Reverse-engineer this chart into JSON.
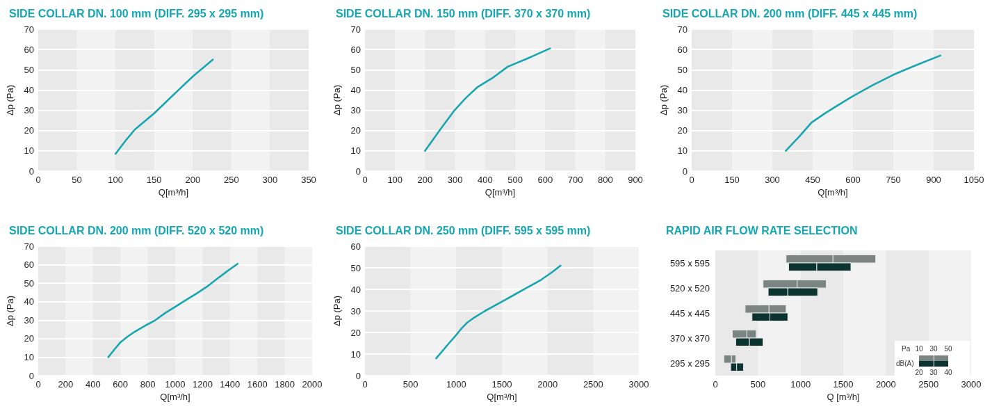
{
  "chart_data": [
    {
      "type": "line",
      "title": "SIDE COLLAR DN. 100 mm (DIFF. 295 x 295 mm)",
      "xlabel": "Q[m³/h]",
      "ylabel": "Δp (Pa)",
      "xlim": [
        0,
        350
      ],
      "xticks": [
        0,
        50,
        100,
        150,
        200,
        250,
        300,
        350
      ],
      "ylim": [
        0,
        70
      ],
      "yticks": [
        0,
        10,
        20,
        30,
        40,
        50,
        60,
        70
      ],
      "grid": "y",
      "series": [
        {
          "color": "#17a6b0",
          "x": [
            100,
            113,
            125,
            150,
            176,
            201,
            226
          ],
          "values": [
            8.5,
            15,
            20.5,
            28.5,
            38,
            47,
            55
          ]
        }
      ]
    },
    {
      "type": "line",
      "title": "SIDE COLLAR DN. 150 mm (DIFF. 370 x 370 mm)",
      "xlabel": "Q[m³/h]",
      "ylabel": "Δp (Pa)",
      "xlim": [
        0,
        900
      ],
      "xticks": [
        0,
        100,
        200,
        300,
        400,
        500,
        600,
        700,
        800,
        900
      ],
      "ylim": [
        0,
        70
      ],
      "yticks": [
        0,
        10,
        20,
        30,
        40,
        50,
        60,
        70
      ],
      "grid": "y",
      "series": [
        {
          "color": "#17a6b0",
          "x": [
            200,
            253,
            298,
            335,
            375,
            425,
            475,
            540,
            616
          ],
          "values": [
            10,
            21,
            30,
            36,
            41.5,
            46,
            51.5,
            55.5,
            60.5
          ]
        }
      ]
    },
    {
      "type": "line",
      "title": "SIDE COLLAR DN. 200 mm (DIFF. 445 x 445 mm)",
      "xlabel": "Q[m³/h]",
      "ylabel": "Δp (Pa)",
      "xlim": [
        0,
        1050
      ],
      "xticks": [
        0,
        150,
        300,
        450,
        600,
        750,
        900,
        1050
      ],
      "ylim": [
        0,
        70
      ],
      "yticks": [
        0,
        10,
        20,
        30,
        40,
        50,
        60,
        70
      ],
      "grid": "y",
      "series": [
        {
          "color": "#17a6b0",
          "x": [
            350,
            400,
            446,
            496,
            550,
            600,
            675,
            750,
            830,
            925
          ],
          "values": [
            10,
            17,
            24,
            28.5,
            33,
            37,
            42.5,
            47.5,
            52,
            57
          ]
        }
      ]
    },
    {
      "type": "line",
      "title": "SIDE COLLAR DN. 200 mm (DIFF. 520 x 520 mm)",
      "xlabel": "Q[m³/h]",
      "ylabel": "Δp (Pa)",
      "xlim": [
        0,
        2000
      ],
      "xticks": [
        0,
        200,
        400,
        600,
        800,
        1000,
        1200,
        1400,
        1600,
        1800,
        2000
      ],
      "ylim": [
        0,
        70
      ],
      "yticks": [
        0,
        10,
        20,
        30,
        40,
        50,
        60,
        70
      ],
      "grid": "y",
      "series": [
        {
          "color": "#17a6b0",
          "x": [
            512,
            560,
            600,
            650,
            703,
            780,
            855,
            930,
            1006,
            1080,
            1151,
            1230,
            1300,
            1380,
            1456
          ],
          "values": [
            10,
            14.5,
            18,
            21,
            23.7,
            27,
            30,
            34,
            37.5,
            41,
            44.2,
            48,
            52,
            56.5,
            60.5
          ]
        }
      ]
    },
    {
      "type": "line",
      "title": "SIDE COLLAR DN. 250 mm (DIFF. 595 x 595 mm)",
      "xlabel": "Q[m³/h]",
      "ylabel": "Δp (Pa)",
      "xlim": [
        0,
        3000
      ],
      "xticks": [
        0,
        500,
        1000,
        1500,
        2000,
        2500,
        3000
      ],
      "ylim": [
        0,
        60
      ],
      "yticks": [
        0,
        10,
        20,
        30,
        40,
        50,
        60
      ],
      "grid": "y",
      "series": [
        {
          "color": "#17a6b0",
          "x": [
            780,
            850,
            920,
            993,
            1060,
            1117,
            1200,
            1315,
            1487,
            1636,
            1784,
            1932,
            2050,
            2142
          ],
          "values": [
            8,
            11.5,
            15,
            18.5,
            22,
            24.5,
            27,
            30,
            34,
            37.5,
            41,
            44.5,
            48,
            51
          ]
        }
      ]
    },
    {
      "type": "bar",
      "orientation": "horizontal",
      "title": "RAPID AIR FLOW RATE SELECTION",
      "xlabel": "Q [m³/h]",
      "xlim": [
        0,
        3000
      ],
      "xticks": [
        0,
        500,
        1000,
        1500,
        2000,
        2500,
        3000
      ],
      "categories": [
        "595 x 595",
        "520 x 520",
        "445 x 445",
        "370 x 370",
        "295 x 295"
      ],
      "annotations": [
        "Pa",
        "10",
        "30",
        "50",
        "dB(A)",
        "20",
        "30",
        "40"
      ],
      "series": [
        {
          "color": "#7a8581",
          "base": [
            830,
            560,
            350,
            200,
            100
          ],
          "values": [
            550,
            400,
            280,
            170,
            90
          ]
        },
        {
          "color": "#7a8581",
          "base": [
            1380,
            960,
            630,
            370,
            190
          ],
          "values": [
            500,
            340,
            200,
            110,
            50
          ]
        },
        {
          "color": "#0b3431",
          "base": [
            860,
            620,
            430,
            240,
            180
          ],
          "values": [
            330,
            230,
            210,
            160,
            70
          ]
        },
        {
          "color": "#0b3431",
          "base": [
            1190,
            850,
            640,
            400,
            250
          ],
          "values": [
            400,
            350,
            210,
            160,
            80
          ]
        }
      ]
    }
  ]
}
